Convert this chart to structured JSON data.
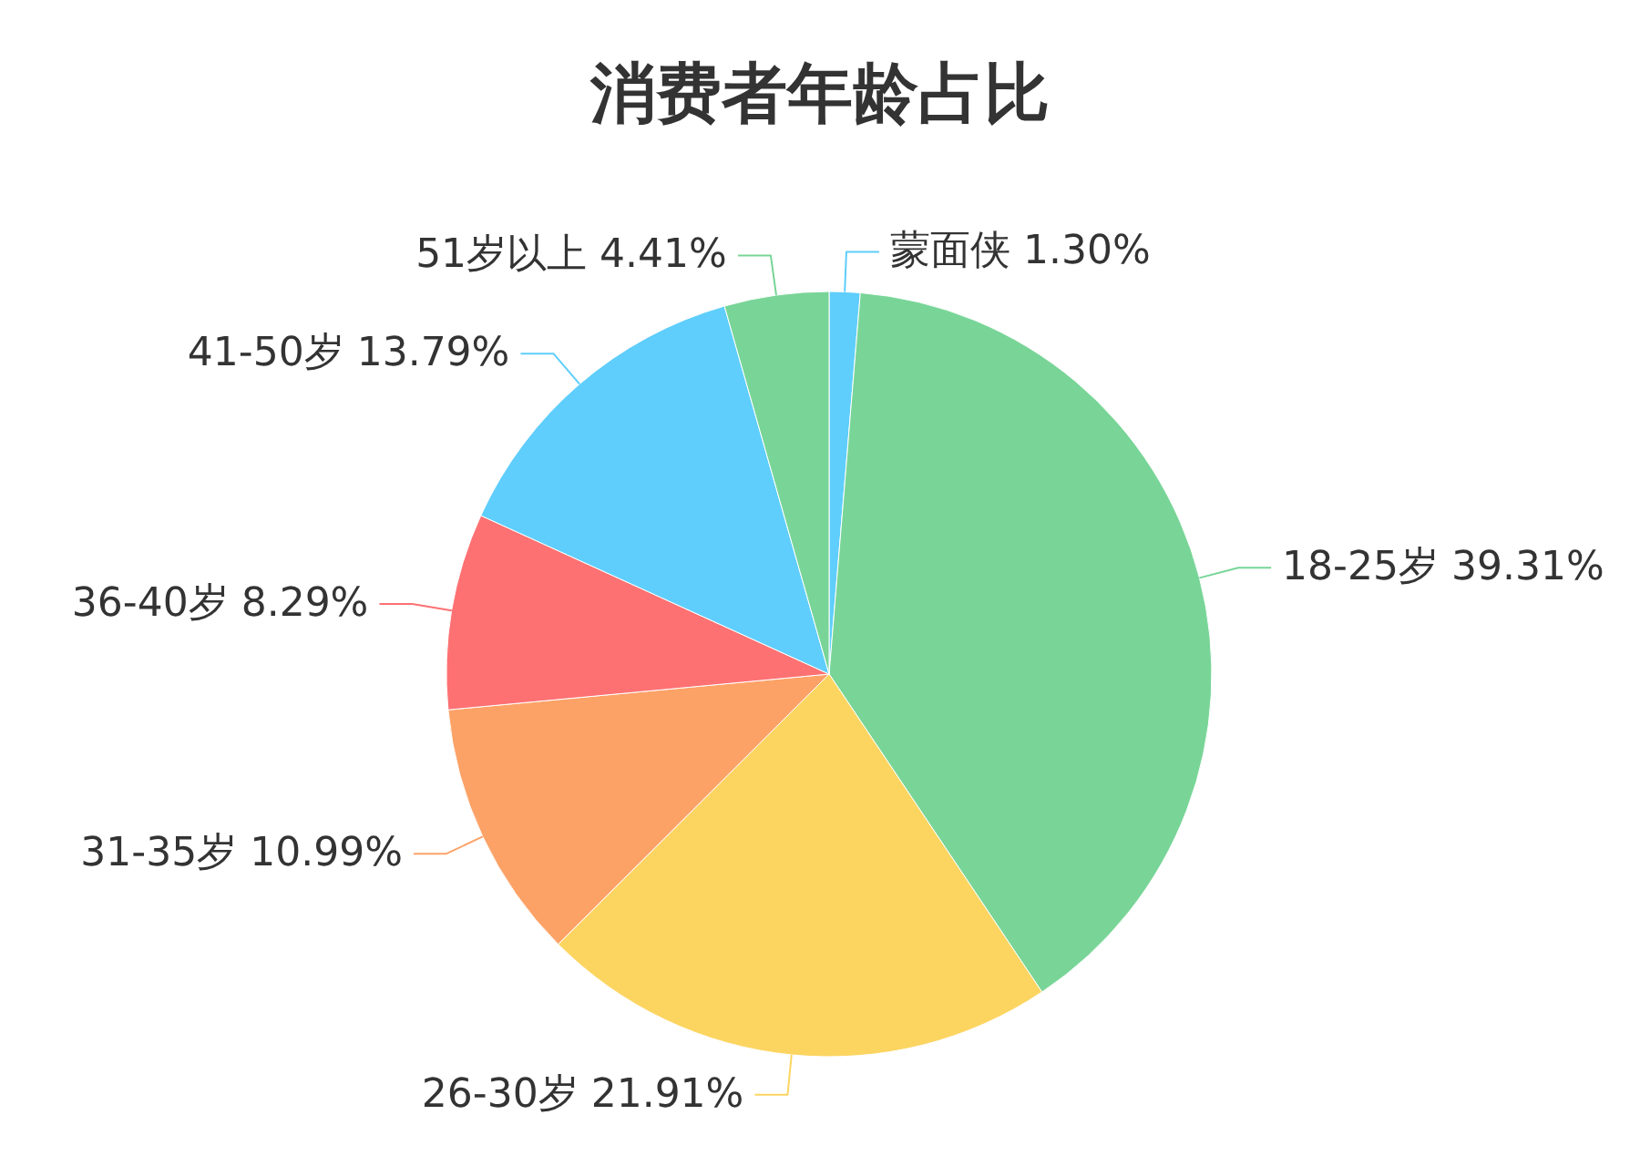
{
  "chart_data": {
    "type": "pie",
    "title": "消费者年龄占比",
    "categories": [
      "蒙面侠",
      "18-25岁",
      "26-30岁",
      "31-35岁",
      "36-40岁",
      "41-50岁",
      "51岁以上"
    ],
    "values": [
      1.3,
      39.31,
      21.91,
      10.99,
      8.29,
      13.79,
      4.41
    ],
    "value_labels": [
      "1.30%",
      "39.31%",
      "21.91%",
      "10.99%",
      "8.29%",
      "13.79%",
      "4.41%"
    ],
    "colors": [
      "#5fcefc",
      "#78d597",
      "#fcd561",
      "#fca267",
      "#fd7173",
      "#5fcefc",
      "#78d597"
    ]
  }
}
